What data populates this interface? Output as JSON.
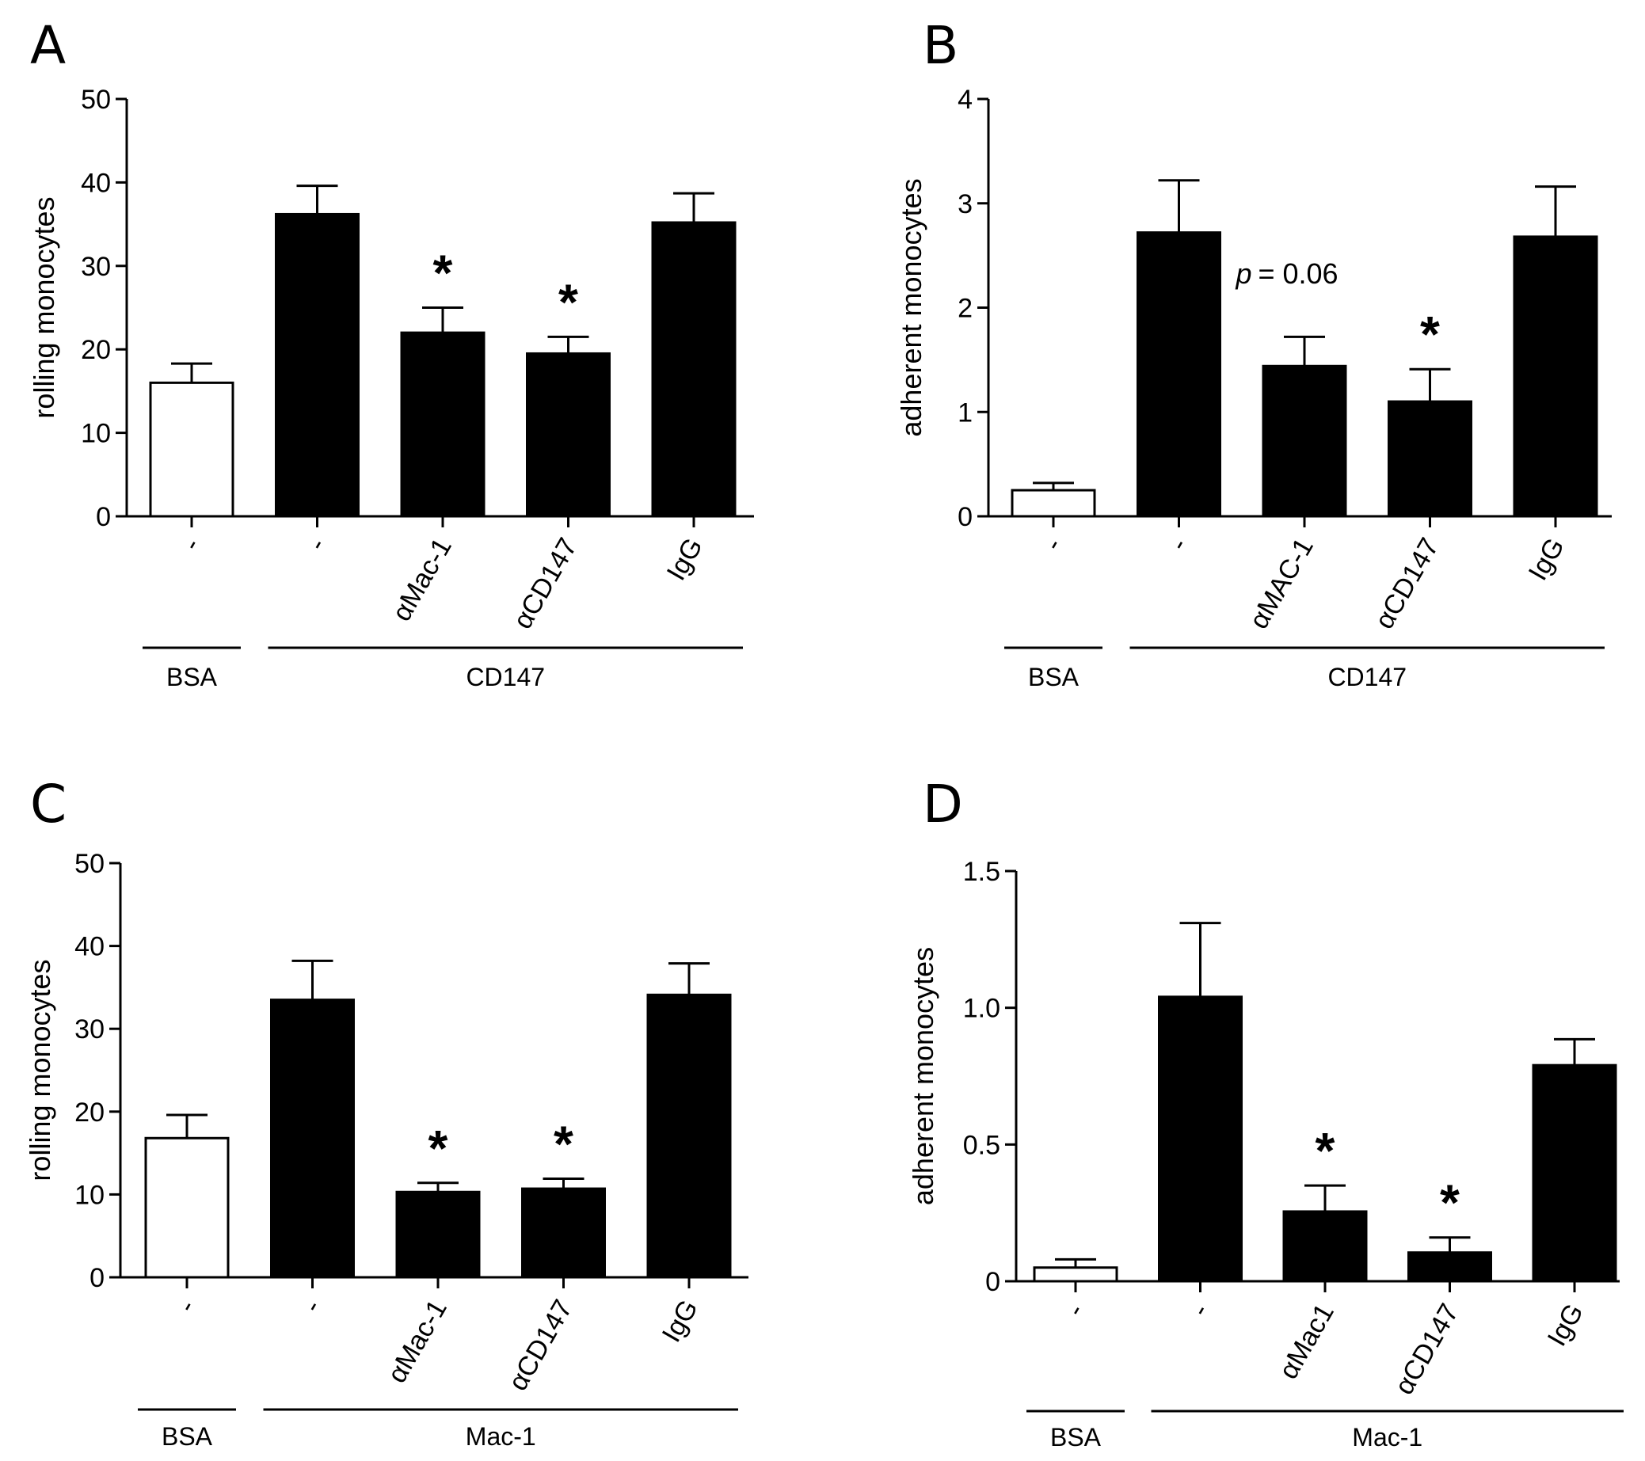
{
  "chart_data": [
    {
      "panel": "A",
      "type": "bar",
      "ylabel": "rolling monocytes",
      "ylim": [
        0,
        50
      ],
      "yticks": [
        "0",
        "10",
        "20",
        "30",
        "40",
        "50"
      ],
      "categories": [
        "-",
        "-",
        "αMac-1",
        "αCD147",
        "IgG"
      ],
      "values": [
        16,
        36.2,
        22,
        19.5,
        35.2
      ],
      "errors": [
        2.3,
        3.4,
        3,
        2,
        3.5
      ],
      "fills": [
        "#ffffff",
        "#000000",
        "#000000",
        "#000000",
        "#000000"
      ],
      "annotations": [
        "",
        "",
        "*",
        "*",
        ""
      ],
      "groups": [
        {
          "label": "BSA",
          "start": 0,
          "end": 0
        },
        {
          "label": "CD147",
          "start": 1,
          "end": 4
        }
      ]
    },
    {
      "panel": "B",
      "type": "bar",
      "ylabel": "adherent monocytes",
      "ylim": [
        0,
        4
      ],
      "yticks": [
        "0",
        "1",
        "2",
        "3",
        "4"
      ],
      "categories": [
        "-",
        "-",
        "αMAC-1",
        "αCD147",
        "IgG"
      ],
      "values": [
        0.25,
        2.72,
        1.44,
        1.1,
        2.68
      ],
      "errors": [
        0.07,
        0.5,
        0.28,
        0.31,
        0.48
      ],
      "fills": [
        "#ffffff",
        "#000000",
        "#000000",
        "#000000",
        "#000000"
      ],
      "annotations": [
        "",
        "",
        "",
        "*",
        ""
      ],
      "p_annotation": {
        "italic": "p",
        "text": "= 0.06"
      },
      "groups": [
        {
          "label": "BSA",
          "start": 0,
          "end": 0
        },
        {
          "label": "CD147",
          "start": 1,
          "end": 4
        }
      ]
    },
    {
      "panel": "C",
      "type": "bar",
      "ylabel": "rolling monocytes",
      "ylim": [
        0,
        50
      ],
      "yticks": [
        "0",
        "10",
        "20",
        "30",
        "40",
        "50"
      ],
      "categories": [
        "-",
        "-",
        "αMac-1",
        "αCD147",
        "IgG"
      ],
      "values": [
        16.8,
        33.5,
        10.3,
        10.7,
        34.1
      ],
      "errors": [
        2.8,
        4.7,
        1.1,
        1.2,
        3.8
      ],
      "fills": [
        "#ffffff",
        "#000000",
        "#000000",
        "#000000",
        "#000000"
      ],
      "annotations": [
        "",
        "",
        "*",
        "*",
        ""
      ],
      "groups": [
        {
          "label": "BSA",
          "start": 0,
          "end": 0
        },
        {
          "label": "Mac-1",
          "start": 1,
          "end": 4
        }
      ]
    },
    {
      "panel": "D",
      "type": "bar",
      "ylabel": "adherent monocytes",
      "ylim": [
        0,
        1.5
      ],
      "yticks": [
        "0",
        "0.5",
        "1.0",
        "1.5"
      ],
      "categories": [
        "-",
        "-",
        "αMac1",
        "αCD147",
        "IgG"
      ],
      "values": [
        0.05,
        1.04,
        0.255,
        0.105,
        0.79
      ],
      "errors": [
        0.03,
        0.27,
        0.095,
        0.055,
        0.095
      ],
      "fills": [
        "#ffffff",
        "#000000",
        "#000000",
        "#000000",
        "#000000"
      ],
      "annotations": [
        "",
        "",
        "*",
        "*",
        ""
      ],
      "groups": [
        {
          "label": "BSA",
          "start": 0,
          "end": 0
        },
        {
          "label": "Mac-1",
          "start": 1,
          "end": 4
        }
      ]
    }
  ]
}
